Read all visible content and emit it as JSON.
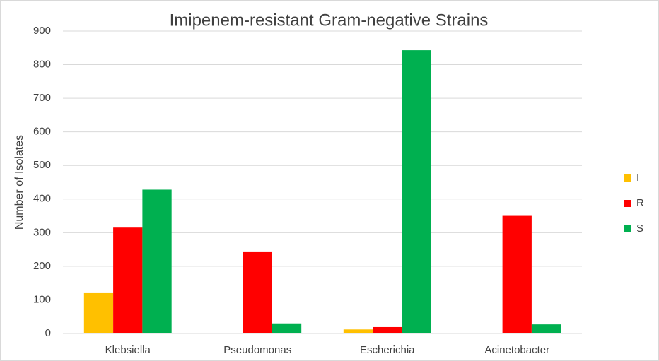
{
  "chart_data": {
    "type": "bar",
    "title": "Imipenem-resistant Gram-negative Strains",
    "y_label": "Number of Isolates",
    "categories": [
      "Klebsiella",
      "Pseudomonas",
      "Escherichia",
      "Acinetobacter"
    ],
    "series": [
      {
        "name": "I",
        "color": "#ffc000",
        "values": [
          120,
          0,
          12,
          0
        ]
      },
      {
        "name": "R",
        "color": "#ff0000",
        "values": [
          315,
          242,
          19,
          350
        ]
      },
      {
        "name": "S",
        "color": "#00b050",
        "values": [
          428,
          30,
          843,
          27
        ]
      }
    ],
    "ylim": [
      0,
      900
    ],
    "yticks": [
      0,
      100,
      200,
      300,
      400,
      500,
      600,
      700,
      800,
      900
    ],
    "grid": true,
    "legend": "right"
  }
}
